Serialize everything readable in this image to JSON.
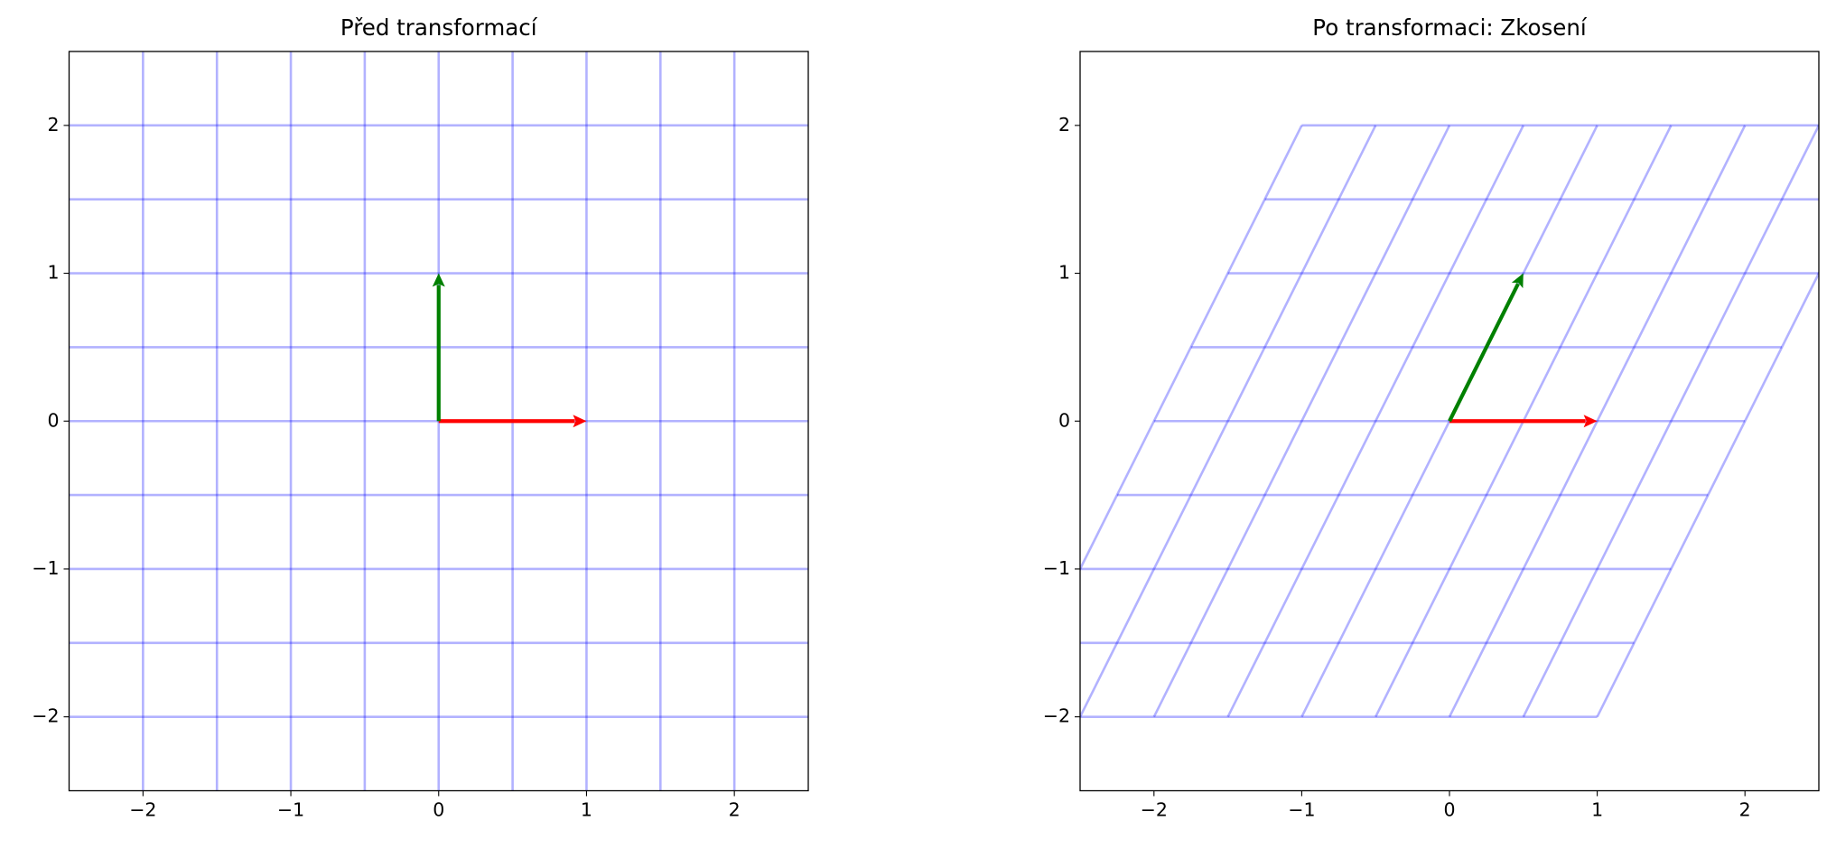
{
  "chart_data": [
    {
      "type": "vector",
      "title": "Před transformací",
      "xlim": [
        -2.5,
        2.5
      ],
      "ylim": [
        -2.5,
        2.5
      ],
      "xticks": [
        {
          "value": -2,
          "label": "−2"
        },
        {
          "value": -1,
          "label": "−1"
        },
        0,
        1,
        2
      ],
      "yticks": [
        {
          "value": -2,
          "label": "−2"
        },
        {
          "value": -1,
          "label": "−1"
        },
        0,
        1,
        2
      ],
      "grid_color": "#0000ff",
      "grid_x": [
        -2,
        -1.5,
        -1,
        -0.5,
        0,
        0.5,
        1,
        1.5,
        2
      ],
      "grid_y": [
        -2,
        -1.5,
        -1,
        -0.5,
        0,
        0.5,
        1,
        1.5,
        2
      ],
      "vectors": [
        {
          "color": "#ff0000",
          "x": 1,
          "y": 0
        },
        {
          "color": "#008000",
          "x": 0,
          "y": 1
        }
      ]
    },
    {
      "type": "vector",
      "title": "Po transformaci: Zkosení",
      "xlim": [
        -2.5,
        2.5
      ],
      "ylim": [
        -2.5,
        2.5
      ],
      "xticks": [
        {
          "value": -2,
          "label": "−2"
        },
        {
          "value": -1,
          "label": "−1"
        },
        0,
        1,
        2
      ],
      "yticks": [
        {
          "value": -2,
          "label": "−2"
        },
        {
          "value": -1,
          "label": "−1"
        },
        0,
        1,
        2
      ],
      "grid_color": "#0000ff",
      "grid_x": [
        -2,
        -1.5,
        -1,
        -0.5,
        0,
        0.5,
        1,
        1.5,
        2
      ],
      "grid_y": [
        -2,
        -1.5,
        -1,
        -0.5,
        0,
        0.5,
        1,
        1.5,
        2
      ],
      "grid_extent": [
        -2,
        2
      ],
      "shear_x": 0.5,
      "vectors": [
        {
          "color": "#ff0000",
          "x": 1,
          "y": 0
        },
        {
          "color": "#008000",
          "x": 0.5,
          "y": 1
        }
      ]
    }
  ]
}
